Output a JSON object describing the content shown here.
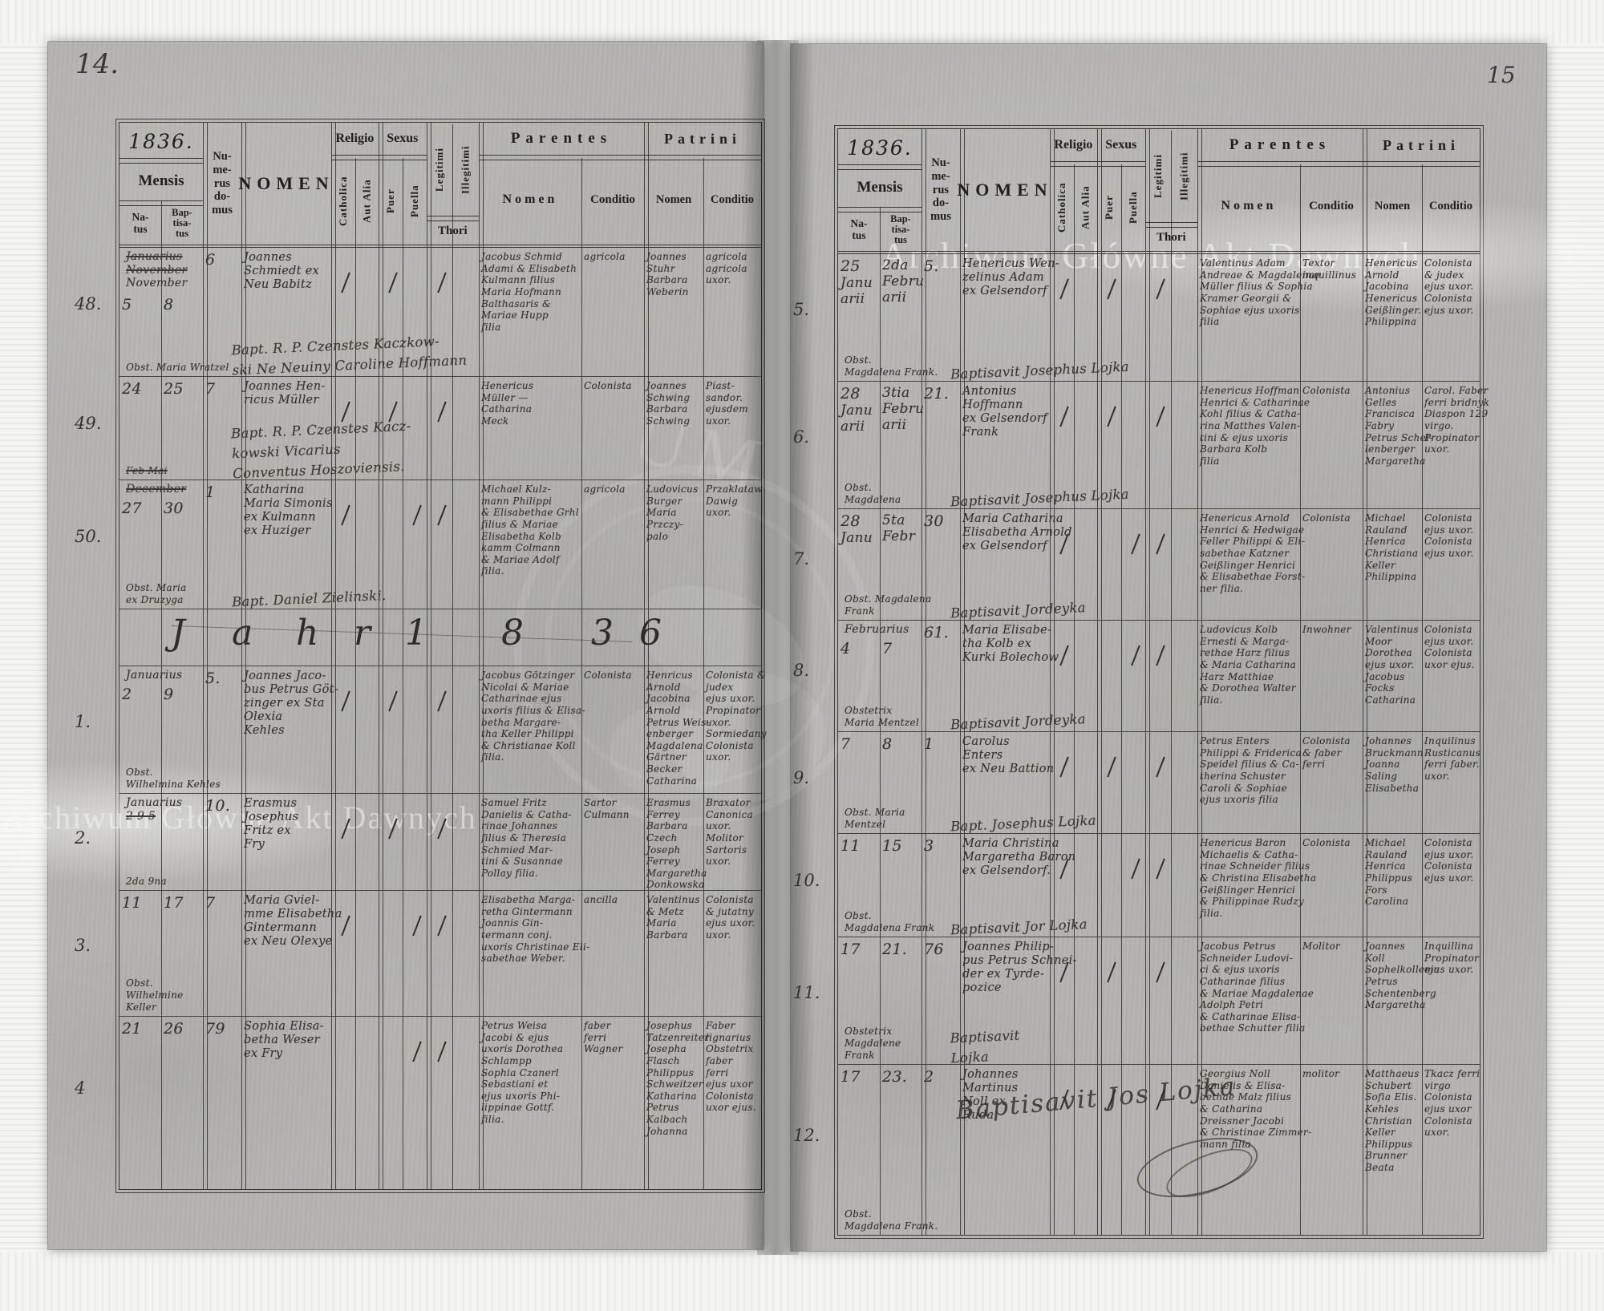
{
  "header": {
    "year": "1836.",
    "mensis": "Mensis",
    "natus": "Na-\ntus",
    "baptisatus": "Bap-\ntisa-\ntus",
    "numerus": "Nu-\nme-\nrus\ndo-\nmus",
    "nomen": "NOMEN",
    "religio": "Religio",
    "catholica": "Catholica",
    "aut_alia": "Aut Alia",
    "sexus": "Sexus",
    "puer": "Puer",
    "puella": "Puella",
    "legitimi": "Legitimi",
    "illegitimi": "Illegitimi",
    "thori": "Thori",
    "parentes": "Parentes",
    "patrini": "Patrini",
    "sub_nomen": "Nomen",
    "sub_conditio": "Conditio"
  },
  "watermarks": {
    "text": "Archiwum Główne Akt Dawnych",
    "emblem_fragment": "UM"
  },
  "page_left": {
    "page_no": "14.",
    "rows": [
      {
        "no": "48.",
        "mensis": [
          "~Januarius",
          "~November",
          "November"
        ],
        "natus": "5",
        "bapt": "8",
        "domus": "6",
        "subnote": [
          "Obst. Maria Wratzel"
        ],
        "nomen": [
          "Joannes",
          "Schmiedt ex",
          "Neu Babitz"
        ],
        "note": [
          "Bapt. R. P. Czenstes Kaczkow-",
          "ski Ne Neuiny Caroline Hoffmann"
        ],
        "marks": [
          "cath",
          "puer",
          "leg"
        ],
        "par_nomen": [
          "Jacobus Schmid",
          "Adami & Elisabeth",
          "Kulmann filius",
          "Maria Hofmann",
          "Balthasaris &",
          "Mariae Hupp",
          "filia"
        ],
        "par_cond": [
          "agricola"
        ],
        "pat_nomen": [
          "Joannes",
          "Stuhr",
          "Barbara",
          "Weberin"
        ],
        "pat_cond": [
          "agricola",
          "agricola",
          "uxor."
        ]
      },
      {
        "no": "49.",
        "mensis": [],
        "natus": "24",
        "bapt": "25",
        "domus": "7",
        "subnote": [
          "~Feb   ~Mai"
        ],
        "nomen": [
          "Joannes Hen-",
          "ricus Müller"
        ],
        "note": [
          "Bapt. R. P. Czenstes Kacz-",
          "kowski Vicarius",
          "Conventus Hoszoviensis."
        ],
        "marks": [
          "cath",
          "puer",
          "leg"
        ],
        "par_nomen": [
          "Henericus",
          "Müller —",
          "Catharina",
          "Meck"
        ],
        "par_cond": [
          "Colonista"
        ],
        "pat_nomen": [
          "Joannes",
          "Schwing",
          "Barbara",
          "Schwing"
        ],
        "pat_cond": [
          "Piast-",
          "sandor.",
          "ejusdem",
          "uxor."
        ]
      },
      {
        "no": "50.",
        "mensis": [
          "~December"
        ],
        "natus": "27",
        "bapt": "30",
        "domus": "1",
        "subnote": [
          "Obst. Maria",
          "ex Druzyga"
        ],
        "nomen": [
          "Katharina",
          "Maria Simonis",
          "ex Kulmann",
          "ex Huziger"
        ],
        "note": [
          "Bapt. Daniel Zielinski."
        ],
        "marks": [
          "cath",
          "puella",
          "leg"
        ],
        "par_nomen": [
          "Michael Kulz-",
          "mann Philippi",
          "& Elisabethae Grhl",
          "filius & Mariae",
          "Elisabetha Kolb",
          "kamm Colmann",
          "& Mariae Adolf",
          "filia."
        ],
        "par_cond": [
          "agricola"
        ],
        "pat_nomen": [
          "Ludovicus",
          "Burger",
          "Maria",
          "Przczy-",
          "palo"
        ],
        "pat_cond": [
          "Przaklataw",
          "Dawig",
          "uxor."
        ]
      },
      {
        "type": "jahr",
        "letters": [
          "J",
          "a",
          "h",
          "r",
          "1",
          "8",
          "3",
          "6"
        ]
      },
      {
        "no": "1.",
        "mensis": [
          "Januarius"
        ],
        "natus": "2",
        "bapt": "9",
        "domus": "5.",
        "subnote": [
          "Obst.",
          "Wilhelmina Kehles"
        ],
        "nomen": [
          "Joannes Jaco-",
          "bus Petrus Göt-",
          "zinger ex Sta",
          "Olexia",
          "Kehles"
        ],
        "marks": [
          "cath",
          "puer",
          "leg"
        ],
        "par_nomen": [
          "Jacobus Götzinger",
          "Nicolai & Mariae",
          "Catharinae ejus",
          "uxoris filius & Elisa-",
          "betha Margare-",
          "tha Keller Philippi",
          "& Christianae Koll",
          "filia."
        ],
        "par_cond": [
          "Colonista"
        ],
        "pat_nomen": [
          "Henricus",
          "Arnold",
          "Jacobina",
          "Arnold",
          "Petrus Weis-",
          "enberger",
          "Magdalena",
          "Gärtner",
          "Becker",
          "Catharina"
        ],
        "pat_cond": [
          "Colonista &",
          "judex",
          "ejus uxor.",
          "Propinator",
          "uxor.",
          "Sormiedany",
          "Colonista",
          "uxor."
        ]
      },
      {
        "no": "2.",
        "mensis": [
          "Januarius",
          "~2   9   5"
        ],
        "natus": "",
        "bapt": "",
        "domus": "10.",
        "subnote": [
          "2da   9na"
        ],
        "nomen": [
          "Erasmus",
          "Josephus",
          "Fritz ex",
          "Fry"
        ],
        "marks": [
          "cath",
          "puer",
          "leg"
        ],
        "par_nomen": [
          "Samuel Fritz",
          "Danielis & Catha-",
          "rinae Johannes",
          "filius & Theresia",
          "Schmied Mar-",
          "tini & Susannae",
          "Pollay filia."
        ],
        "par_cond": [
          "Sartor",
          "Culmann"
        ],
        "pat_nomen": [
          "Erasmus",
          "Ferrey",
          "Barbara",
          "Czech",
          "Joseph",
          "Ferrey",
          "Margaretha",
          "Donkowska"
        ],
        "pat_cond": [
          "Braxator",
          "Canonica",
          "uxor.",
          "Molitor",
          "Sartoris",
          "uxor."
        ]
      },
      {
        "no": "3.",
        "mensis": [],
        "natus": "11",
        "bapt": "17",
        "domus": "7",
        "subnote": [
          "Obst.",
          "Wilhelmine",
          "Keller"
        ],
        "nomen": [
          "Maria Gviel-",
          "mme Elisabetha",
          "Gintermann",
          "ex Neu Olexye"
        ],
        "marks": [
          "cath",
          "puella",
          "leg"
        ],
        "par_nomen": [
          "Elisabetha Marga-",
          "retha Gintermann",
          "Joannis Gin-",
          "termann conj.",
          "uxoris Christinae Eli-",
          "sabethae Weber."
        ],
        "par_cond": [
          "ancilla"
        ],
        "pat_nomen": [
          "Valentinus",
          "& Metz",
          "Maria",
          "Barbara"
        ],
        "pat_cond": [
          "Colonista",
          "& jutatny",
          "ejus uxor.",
          "uxor."
        ]
      },
      {
        "no": "4",
        "mensis": [],
        "natus": "21",
        "bapt": "26",
        "domus": "79",
        "subnote": [],
        "nomen": [
          "Sophia Elisa-",
          "betha Weser",
          "ex Fry"
        ],
        "marks": [
          "puella",
          "leg"
        ],
        "par_nomen": [
          "Petrus Weisa",
          "Jacobi & ejus",
          "uxoris Dorothea",
          "Schlampp",
          "Sophia Czanerl",
          "Sebastiani et",
          "ejus uxoris Phi-",
          "lippinae Gottf.",
          "filia."
        ],
        "par_cond": [
          "faber",
          "ferri",
          "Wagner"
        ],
        "pat_nomen": [
          "Josephus",
          "Tatzenreiter",
          "Josepha",
          "Flasch",
          "Philippus",
          "Schweitzer",
          "Katharina",
          "Petrus",
          "Kalbach",
          "Johanna"
        ],
        "pat_cond": [
          "Faber",
          "lignarius",
          "Obstetrix",
          "faber",
          "ferri",
          "ejus uxor",
          "Colonista",
          "uxor ejus."
        ]
      }
    ]
  },
  "page_right": {
    "page_no": "15",
    "signature": "Baptisavit Jos Lojka",
    "rows": [
      {
        "no": "5.",
        "mensis": [],
        "natus": [
          "25",
          "Janu",
          "arii"
        ],
        "bapt": [
          "2da",
          "Febru",
          "arii"
        ],
        "domus": "5.",
        "subnote": [
          "Obst.",
          "Magdalena Frank."
        ],
        "nomen": [
          "Henericus Wen-",
          "zelinus Adam",
          "ex Gelsendorf"
        ],
        "note": [
          "Baptisavit Josephus Lojka"
        ],
        "marks": [
          "cath",
          "puer",
          "leg"
        ],
        "par_nomen": [
          "Valentinus Adam",
          "Andreae & Magdalenae",
          "Müller filius & Sophia",
          "Kramer Georgii &",
          "Sophiae ejus uxoris",
          "filia"
        ],
        "par_cond": [
          "Textor",
          "inquillinus"
        ],
        "pat_nomen": [
          "Henericus",
          "Arnold",
          "Jacobina",
          "Henericus",
          "Geißlinger.",
          "Philippina"
        ],
        "pat_cond": [
          "Colonista",
          "& judex",
          "ejus uxor.",
          "Colonista",
          "ejus uxor."
        ]
      },
      {
        "no": "6.",
        "mensis": [],
        "natus": [
          "28",
          "Janu",
          "arii"
        ],
        "bapt": [
          "3tia",
          "Febru",
          "arii"
        ],
        "domus": "21.",
        "subnote": [
          "Obst.",
          "Magdalena"
        ],
        "nomen": [
          "Antonius",
          "Hoffmann",
          "ex Gelsendorf",
          "Frank"
        ],
        "note": [
          "Baptisavit Josephus Lojka"
        ],
        "marks": [
          "cath",
          "puer",
          "leg"
        ],
        "par_nomen": [
          "Henericus Hoffman",
          "Henrici & Catharinae",
          "Kohl filius & Catha-",
          "rina Matthes Valen-",
          "tini & ejus uxoris",
          "Barbara Kolb",
          "filia"
        ],
        "par_cond": [
          "Colonista"
        ],
        "pat_nomen": [
          "Antonius",
          "Gelles",
          "Francisca",
          "Fabry",
          "Petrus Schel-",
          "lenberger",
          "Margaretha"
        ],
        "pat_cond": [
          "Carol. Faber",
          "ferri bridnyk",
          "Diaspon 129",
          "virgo.",
          "Propinator",
          "uxor."
        ]
      },
      {
        "no": "7.",
        "mensis": [],
        "natus": [
          "28",
          "Janu"
        ],
        "bapt": [
          "5ta",
          "Febr"
        ],
        "domus": "30",
        "subnote": [
          "Obst. Magdalena",
          "Frank"
        ],
        "nomen": [
          "Maria Catharina",
          "Elisabetha Arnold",
          "ex Gelsendorf"
        ],
        "note": [
          "Baptisavit Jordeyka"
        ],
        "marks": [
          "cath",
          "puella",
          "leg"
        ],
        "par_nomen": [
          "Henericus Arnold",
          "Henrici & Hedwigae",
          "Feller Philippi & Eli-",
          "sabethae Katzner",
          "Geißlinger Henrici",
          "& Elisabethae Forst-",
          "ner filia."
        ],
        "par_cond": [
          "Colonista"
        ],
        "pat_nomen": [
          "Michael",
          "Rauland",
          "Henrica",
          "Christiana",
          "Keller",
          "Philippina"
        ],
        "pat_cond": [
          "Colonista",
          "ejus uxor.",
          "Colonista",
          "ejus uxor."
        ]
      },
      {
        "no": "8.",
        "mensis": [
          "Februarius"
        ],
        "natus": "4",
        "bapt": "7",
        "domus": "61.",
        "subnote": [
          "Obstetrix",
          "Maria Mentzel"
        ],
        "nomen": [
          "Maria Elisabe-",
          "tha Kolb ex",
          "Kurki Bolechow"
        ],
        "note": [
          "Baptisavit Jordeyka"
        ],
        "marks": [
          "cath",
          "puella",
          "leg"
        ],
        "par_nomen": [
          "Ludovicus Kolb",
          "Ernesti & Marga-",
          "rethae Harz filius",
          "& Maria Catharina",
          "Harz Matthiae",
          "& Dorothea Walter",
          "filia."
        ],
        "par_cond": [
          "Inwohner"
        ],
        "pat_nomen": [
          "Valentinus",
          "Moor",
          "Dorothea",
          "ejus uxor.",
          "Jacobus",
          "Focks",
          "Catharina"
        ],
        "pat_cond": [
          "Colonista",
          "ejus uxor.",
          "Colonista",
          "uxor ejus."
        ]
      },
      {
        "no": "9.",
        "mensis": [],
        "natus": "7",
        "bapt": "8",
        "domus": "1",
        "subnote": [
          "Obst. Maria",
          "Mentzel"
        ],
        "nomen": [
          "Carolus",
          "Enters",
          "ex Neu Battion"
        ],
        "note": [
          "Bapt. Josephus Lojka"
        ],
        "marks": [
          "cath",
          "puer",
          "leg"
        ],
        "par_nomen": [
          "Petrus Enters",
          "Philippi & Friderica",
          "Speidel filius & Ca-",
          "therina Schuster",
          "Caroli & Sophiae",
          "ejus uxoris filia"
        ],
        "par_cond": [
          "Colonista",
          "& faber",
          "ferri"
        ],
        "pat_nomen": [
          "Johannes",
          "Bruckmann",
          "Joanna",
          "Saling",
          "Elisabetha"
        ],
        "pat_cond": [
          "Inquilinus",
          "Rusticanus",
          "ferri faber.",
          "uxor."
        ]
      },
      {
        "no": "10.",
        "mensis": [],
        "natus": "11",
        "bapt": "15",
        "domus": "3",
        "subnote": [
          "Obst.",
          "Magdalena Frank"
        ],
        "nomen": [
          "Maria Christina",
          "Margaretha Baron",
          "ex Gelsendorf."
        ],
        "note": [
          "Baptisavit Jor Lojka"
        ],
        "marks": [
          "cath",
          "puella",
          "leg"
        ],
        "par_nomen": [
          "Henericus Baron",
          "Michaelis & Catha-",
          "rinae Schneider filius",
          "& Christina Elisabetha",
          "Geißlinger Henrici",
          "& Philippinae Rudzy",
          "filia."
        ],
        "par_cond": [
          "Colonista"
        ],
        "pat_nomen": [
          "Michael",
          "Rauland",
          "Henrica",
          "Philippus",
          "Fors",
          "Carolina"
        ],
        "pat_cond": [
          "Colonista",
          "ejus uxor.",
          "Colonista",
          "ejus uxor."
        ]
      },
      {
        "no": "11.",
        "mensis": [],
        "natus": "17",
        "bapt": "21.",
        "domus": "76",
        "subnote": [
          "Obstetrix",
          "Magdalene",
          "Frank"
        ],
        "nomen": [
          "Joannes Philip-",
          "pus Petrus Schnei-",
          "der ex Tyrde-",
          "pozice"
        ],
        "note": [
          "Baptisavit",
          "Lojka"
        ],
        "marks": [
          "cath",
          "puer",
          "leg"
        ],
        "par_nomen": [
          "Jacobus Petrus",
          "Schneider Ludovi-",
          "ci & ejus uxoris",
          "Catharinae filius",
          "& Mariae Magdalenae",
          "Adolph Petri",
          "& Catharinae Elisa-",
          "bethae Schutter filia"
        ],
        "par_cond": [
          "Molitor"
        ],
        "pat_nomen": [
          "Joannes",
          "Koll",
          "Sophelkollema",
          "Petrus",
          "Schentenberg",
          "Margaretha"
        ],
        "pat_cond": [
          "Inquillina",
          "Propinator",
          "ejus uxor."
        ]
      },
      {
        "no": "12.",
        "mensis": [],
        "natus": "17",
        "bapt": "23.",
        "domus": "2",
        "subnote": [
          "Obst.",
          "Magdalena Frank."
        ],
        "nomen": [
          "Johannes",
          "Martinus",
          "Noll ex",
          "Ruda"
        ],
        "marks": [
          "cath",
          "puer",
          "leg"
        ],
        "par_nomen": [
          "Georgius Noll",
          "Danielis & Elisa-",
          "bethae Malz filius",
          "& Catharina",
          "Dreissner Jacobi",
          "& Christinae Zimmer-",
          "mann filia"
        ],
        "par_cond": [
          "molitor"
        ],
        "pat_nomen": [
          "Matthaeus",
          "Schubert",
          "Sofia Elis.",
          "Kehles",
          "Christian",
          "Keller",
          "Philippus",
          "Brunner",
          "Beata"
        ],
        "pat_cond": [
          "Tkacz ferri",
          "virgo",
          "Colonista",
          "ejus uxor",
          "Colonista",
          "uxor."
        ]
      }
    ]
  }
}
